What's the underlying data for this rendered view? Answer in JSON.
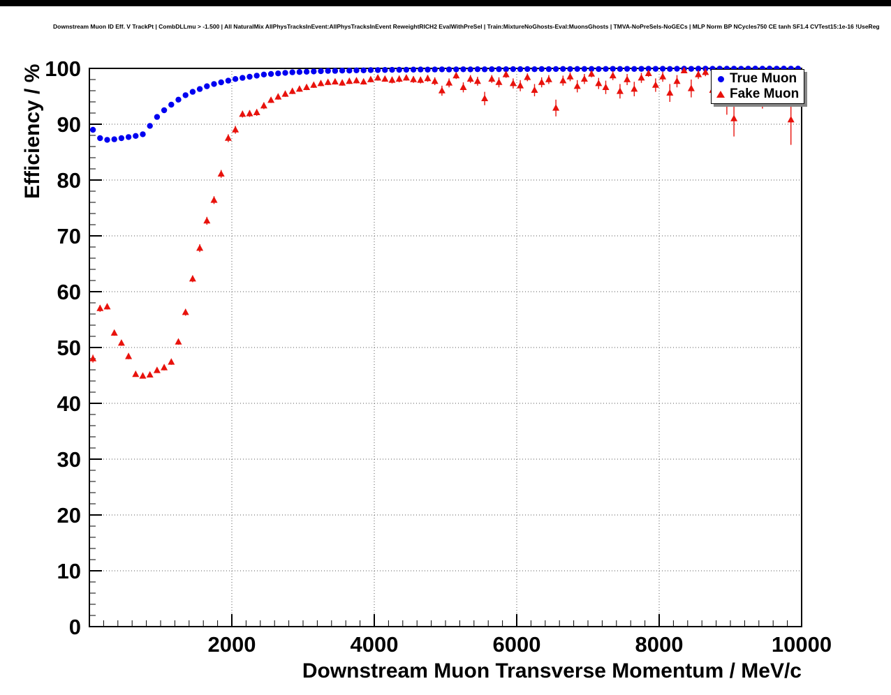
{
  "chart_data": {
    "type": "scatter",
    "title": "Downstream Muon ID Eff. V TrackPt | CombDLLmu > -1.500 | All NaturalMix AllPhysTracksInEvent:AllPhysTracksInEvent ReweightRICH2 EvalWithPreSel | Train:MixtureNoGhosts-Eval:MuonsGhosts | TMVA-NoPreSels-NoGECs | MLP Norm BP NCycles750 CE tanh SF1.4 CVTest15:1e-16 !UseReg",
    "xlabel": "Downstream Muon Transverse Momentum / MeV/c",
    "ylabel": "Efficiency / %",
    "xlim": [
      0,
      10000
    ],
    "ylim": [
      0,
      100
    ],
    "x_ticks": [
      2000,
      4000,
      6000,
      8000,
      10000
    ],
    "x_minor_step": 200,
    "y_ticks": [
      0,
      10,
      20,
      30,
      40,
      50,
      60,
      70,
      80,
      90,
      100
    ],
    "y_minor_step": 2,
    "grid": "dotted",
    "legend": {
      "position": "top-right",
      "entries": [
        {
          "label": "True Muon",
          "marker": "circle",
          "color": "#0000f0"
        },
        {
          "label": "Fake Muon",
          "marker": "triangle",
          "color": "#e8120c"
        }
      ]
    },
    "series": [
      {
        "name": "True Muon",
        "marker": "circle",
        "color": "#0000f0",
        "points": [
          [
            50,
            89.0
          ],
          [
            150,
            87.5
          ],
          [
            250,
            87.2
          ],
          [
            350,
            87.3
          ],
          [
            450,
            87.5
          ],
          [
            550,
            87.7
          ],
          [
            650,
            87.9
          ],
          [
            750,
            88.2
          ],
          [
            850,
            89.7
          ],
          [
            950,
            91.3
          ],
          [
            1050,
            92.5
          ],
          [
            1150,
            93.5
          ],
          [
            1250,
            94.4
          ],
          [
            1350,
            95.2
          ],
          [
            1450,
            95.8
          ],
          [
            1550,
            96.3
          ],
          [
            1650,
            96.8
          ],
          [
            1750,
            97.2
          ],
          [
            1850,
            97.5
          ],
          [
            1950,
            97.8
          ],
          [
            2050,
            98.1
          ],
          [
            2150,
            98.3
          ],
          [
            2250,
            98.5
          ],
          [
            2350,
            98.7
          ],
          [
            2450,
            98.9
          ],
          [
            2550,
            99.0
          ],
          [
            2650,
            99.1
          ],
          [
            2750,
            99.2
          ],
          [
            2850,
            99.3
          ],
          [
            2950,
            99.35
          ],
          [
            3050,
            99.4
          ],
          [
            3150,
            99.45
          ],
          [
            3250,
            99.5
          ],
          [
            3350,
            99.55
          ],
          [
            3450,
            99.55
          ],
          [
            3550,
            99.6
          ],
          [
            3650,
            99.6
          ],
          [
            3750,
            99.65
          ],
          [
            3850,
            99.65
          ],
          [
            3950,
            99.7
          ],
          [
            4050,
            99.7
          ],
          [
            4150,
            99.72
          ],
          [
            4250,
            99.74
          ],
          [
            4350,
            99.75
          ],
          [
            4450,
            99.76
          ],
          [
            4550,
            99.78
          ],
          [
            4650,
            99.8
          ],
          [
            4750,
            99.78
          ],
          [
            4850,
            99.8
          ],
          [
            4950,
            99.82
          ],
          [
            5050,
            99.8
          ],
          [
            5150,
            99.82
          ],
          [
            5250,
            99.84
          ],
          [
            5350,
            99.82
          ],
          [
            5450,
            99.85
          ],
          [
            5550,
            99.83
          ],
          [
            5650,
            99.85
          ],
          [
            5750,
            99.86
          ],
          [
            5850,
            99.85
          ],
          [
            5950,
            99.87
          ],
          [
            6050,
            99.86
          ],
          [
            6150,
            99.88
          ],
          [
            6250,
            99.85
          ],
          [
            6350,
            99.88
          ],
          [
            6450,
            99.87
          ],
          [
            6550,
            99.88
          ],
          [
            6650,
            99.9
          ],
          [
            6750,
            99.88
          ],
          [
            6850,
            99.9
          ],
          [
            6950,
            99.9
          ],
          [
            7050,
            99.9
          ],
          [
            7150,
            99.88
          ],
          [
            7250,
            99.9
          ],
          [
            7350,
            99.92
          ],
          [
            7450,
            99.9
          ],
          [
            7550,
            99.92
          ],
          [
            7650,
            99.9
          ],
          [
            7750,
            99.92
          ],
          [
            7850,
            99.93
          ],
          [
            7950,
            99.92
          ],
          [
            8050,
            99.93
          ],
          [
            8150,
            99.9
          ],
          [
            8250,
            99.93
          ],
          [
            8350,
            99.94
          ],
          [
            8450,
            99.92
          ],
          [
            8550,
            99.94
          ],
          [
            8650,
            99.95
          ],
          [
            8750,
            99.93
          ],
          [
            8850,
            99.95
          ],
          [
            8950,
            99.94
          ],
          [
            9050,
            99.95
          ],
          [
            9150,
            99.93
          ],
          [
            9250,
            99.95
          ],
          [
            9350,
            99.96
          ],
          [
            9450,
            99.94
          ],
          [
            9550,
            99.96
          ],
          [
            9650,
            99.95
          ],
          [
            9750,
            99.96
          ],
          [
            9850,
            99.95
          ],
          [
            9950,
            99.96
          ]
        ]
      },
      {
        "name": "Fake Muon",
        "marker": "triangle",
        "color": "#e8120c",
        "points": [
          [
            50,
            48.0,
            0.7
          ],
          [
            150,
            57.0,
            0.6
          ],
          [
            250,
            57.3,
            0.5
          ],
          [
            350,
            52.6,
            0.5
          ],
          [
            450,
            50.8,
            0.5
          ],
          [
            550,
            48.4,
            0.5
          ],
          [
            650,
            45.2,
            0.4
          ],
          [
            750,
            44.9,
            0.4
          ],
          [
            850,
            45.1,
            0.4
          ],
          [
            950,
            45.9,
            0.4
          ],
          [
            1050,
            46.4,
            0.5
          ],
          [
            1150,
            47.4,
            0.5
          ],
          [
            1250,
            51.0,
            0.5
          ],
          [
            1350,
            56.3,
            0.6
          ],
          [
            1450,
            62.3,
            0.6
          ],
          [
            1550,
            67.8,
            0.7
          ],
          [
            1650,
            72.7,
            0.7
          ],
          [
            1750,
            76.4,
            0.7
          ],
          [
            1850,
            81.1,
            0.7
          ],
          [
            1950,
            87.5,
            0.7
          ],
          [
            2050,
            89.0,
            0.7
          ],
          [
            2150,
            91.8,
            0.6
          ],
          [
            2250,
            91.9,
            0.6
          ],
          [
            2350,
            92.1,
            0.6
          ],
          [
            2450,
            93.3,
            0.6
          ],
          [
            2550,
            94.3,
            0.5
          ],
          [
            2650,
            94.9,
            0.5
          ],
          [
            2750,
            95.4,
            0.5
          ],
          [
            2850,
            95.9,
            0.5
          ],
          [
            2950,
            96.3,
            0.5
          ],
          [
            3050,
            96.6,
            0.5
          ],
          [
            3150,
            97.0,
            0.5
          ],
          [
            3250,
            97.3,
            0.5
          ],
          [
            3350,
            97.5,
            0.5
          ],
          [
            3450,
            97.6,
            0.5
          ],
          [
            3550,
            97.4,
            0.5
          ],
          [
            3650,
            97.7,
            0.5
          ],
          [
            3750,
            97.8,
            0.5
          ],
          [
            3850,
            97.6,
            0.5
          ],
          [
            3950,
            98.0,
            0.5
          ],
          [
            4050,
            98.3,
            0.5
          ],
          [
            4150,
            98.1,
            0.5
          ],
          [
            4250,
            97.9,
            0.6
          ],
          [
            4350,
            98.1,
            0.6
          ],
          [
            4450,
            98.3,
            0.5
          ],
          [
            4550,
            98.0,
            0.6
          ],
          [
            4650,
            97.9,
            0.6
          ],
          [
            4750,
            98.2,
            0.6
          ],
          [
            4850,
            97.7,
            0.7
          ],
          [
            4950,
            96.0,
            0.9
          ],
          [
            5050,
            97.4,
            0.8
          ],
          [
            5150,
            98.7,
            0.6
          ],
          [
            5250,
            96.6,
            0.9
          ],
          [
            5350,
            98.1,
            0.7
          ],
          [
            5450,
            97.7,
            0.8
          ],
          [
            5550,
            94.6,
            1.2
          ],
          [
            5650,
            98.1,
            0.7
          ],
          [
            5750,
            97.5,
            0.9
          ],
          [
            5850,
            98.9,
            0.6
          ],
          [
            5950,
            97.3,
            0.9
          ],
          [
            6050,
            96.9,
            1.0
          ],
          [
            6150,
            98.4,
            0.7
          ],
          [
            6250,
            96.1,
            1.1
          ],
          [
            6350,
            97.5,
            0.9
          ],
          [
            6450,
            98.0,
            0.8
          ],
          [
            6550,
            92.9,
            1.5
          ],
          [
            6650,
            97.8,
            0.9
          ],
          [
            6750,
            98.5,
            0.8
          ],
          [
            6850,
            96.8,
            1.1
          ],
          [
            6950,
            98.1,
            0.9
          ],
          [
            7050,
            99.0,
            0.6
          ],
          [
            7150,
            97.3,
            1.0
          ],
          [
            7250,
            96.6,
            1.2
          ],
          [
            7350,
            98.7,
            0.8
          ],
          [
            7450,
            95.9,
            1.3
          ],
          [
            7550,
            98.0,
            1.0
          ],
          [
            7650,
            96.3,
            1.3
          ],
          [
            7750,
            98.3,
            0.9
          ],
          [
            7850,
            99.1,
            0.6
          ],
          [
            7950,
            97.0,
            1.2
          ],
          [
            8050,
            98.5,
            0.9
          ],
          [
            8150,
            95.6,
            1.6
          ],
          [
            8250,
            97.7,
            1.1
          ],
          [
            8350,
            99.6,
            0.4
          ],
          [
            8450,
            96.4,
            1.6
          ],
          [
            8550,
            98.9,
            0.8
          ],
          [
            8650,
            99.3,
            0.7
          ],
          [
            8750,
            96.1,
            1.9
          ],
          [
            8850,
            98.6,
            1.0
          ],
          [
            8950,
            94.0,
            2.3
          ],
          [
            9050,
            91.0,
            3.2
          ],
          [
            9150,
            98.3,
            1.0
          ],
          [
            9250,
            97.0,
            1.7
          ],
          [
            9350,
            98.8,
            1.0
          ],
          [
            9450,
            95.0,
            2.2
          ],
          [
            9550,
            98.5,
            1.2
          ],
          [
            9650,
            97.6,
            1.6
          ],
          [
            9750,
            99.0,
            0.9
          ],
          [
            9850,
            90.8,
            4.5
          ]
        ]
      }
    ]
  }
}
